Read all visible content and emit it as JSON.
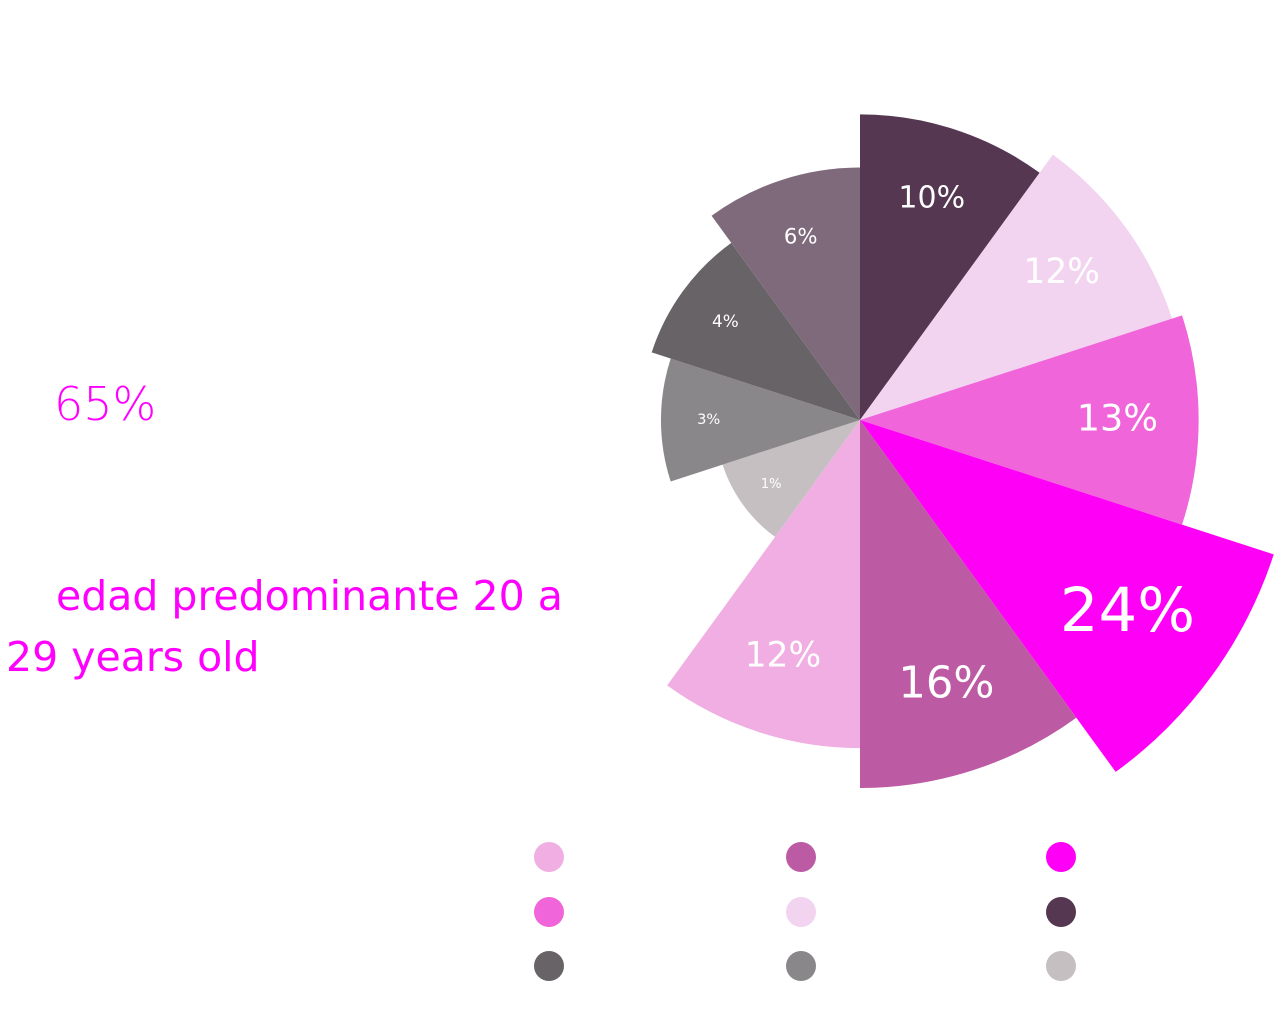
{
  "stat": {
    "value": "65%"
  },
  "note": {
    "text": "edad predominante 20 a 29 years old"
  },
  "chart_data": {
    "type": "pie",
    "variant": "polar-area",
    "slices": [
      {
        "label": "10%",
        "value": 10,
        "color": "#553752",
        "label_color": "#ffffff"
      },
      {
        "label": "12%",
        "value": 12,
        "color": "#f2d3f0",
        "label_color": "#ffffff"
      },
      {
        "label": "13%",
        "value": 13,
        "color": "#f065d9",
        "label_color": "#ffffff"
      },
      {
        "label": "24%",
        "value": 24,
        "color": "#ff00f6",
        "label_color": "#ffffff"
      },
      {
        "label": "16%",
        "value": 16,
        "color": "#bc5aa4",
        "label_color": "#ffffff"
      },
      {
        "label": "12%",
        "value": 12,
        "color": "#f0aee2",
        "label_color": "#ffffff"
      },
      {
        "label": "1%",
        "value": 1,
        "color": "#c6bfc2",
        "label_color": "#ffffff"
      },
      {
        "label": "3%",
        "value": 3,
        "color": "#8a878a",
        "label_color": "#ffffff"
      },
      {
        "label": "4%",
        "value": 4,
        "color": "#676366",
        "label_color": "#ffffff"
      },
      {
        "label": "6%",
        "value": 6,
        "color": "#7f6a7b",
        "label_color": "#ffffff"
      }
    ],
    "legend_colors": [
      "#f0aee2",
      "#bc5aa4",
      "#ff00f6",
      "#f065d9",
      "#f2d3f0",
      "#553752",
      "#676366",
      "#8a878a",
      "#c6bfc2"
    ]
  }
}
